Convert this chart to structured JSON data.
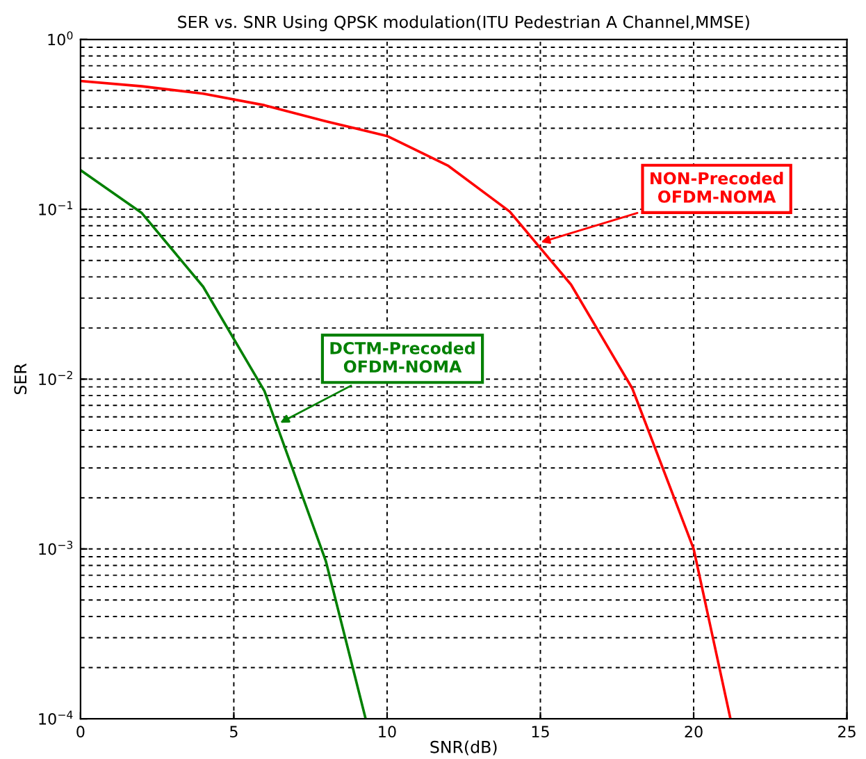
{
  "chart_data": {
    "type": "line",
    "title": "SER vs. SNR Using QPSK modulation(ITU Pedestrian A Channel,MMSE)",
    "xlabel": "SNR(dB)",
    "ylabel": "SER",
    "log": "y",
    "grid": true,
    "marker": "none",
    "line_style": "solid",
    "legend": false,
    "xlim": [
      0,
      25
    ],
    "xticks": [
      0,
      5,
      10,
      15,
      20,
      25
    ],
    "ylim": [
      0.0001,
      1
    ],
    "yticks": [
      {
        "value": 1,
        "label": "10$^{0}$"
      },
      {
        "value": 0.1,
        "label": "10$^{−1}$"
      },
      {
        "value": 0.01,
        "label": "10$^{−2}$"
      },
      {
        "value": 0.001,
        "label": "10$^{−3}$"
      },
      {
        "value": 0.0001,
        "label": "10$^{−4}$"
      }
    ],
    "series": [
      {
        "color": "#ff0000",
        "x": [
          0,
          2,
          4,
          6,
          8,
          10,
          12,
          14,
          16,
          18,
          20,
          21.2
        ],
        "values": [
          0.57,
          0.53,
          0.48,
          0.41,
          0.33,
          0.27,
          0.18,
          0.097,
          0.036,
          0.0088,
          0.001,
          0.0001
        ]
      },
      {
        "color": "#008000",
        "x": [
          0,
          2,
          4,
          6,
          8,
          9.3
        ],
        "values": [
          0.17,
          0.095,
          0.035,
          0.0085,
          0.00085,
          0.0001
        ]
      }
    ],
    "annotations": [
      {
        "text": "NON-Precoded\nOFDM-NOMA",
        "x": 14.9,
        "y": 0.063
      },
      {
        "text": "DCTM-Precoded\nOFDM-NOMA",
        "x": 6.4,
        "y": 0.0054
      }
    ]
  }
}
